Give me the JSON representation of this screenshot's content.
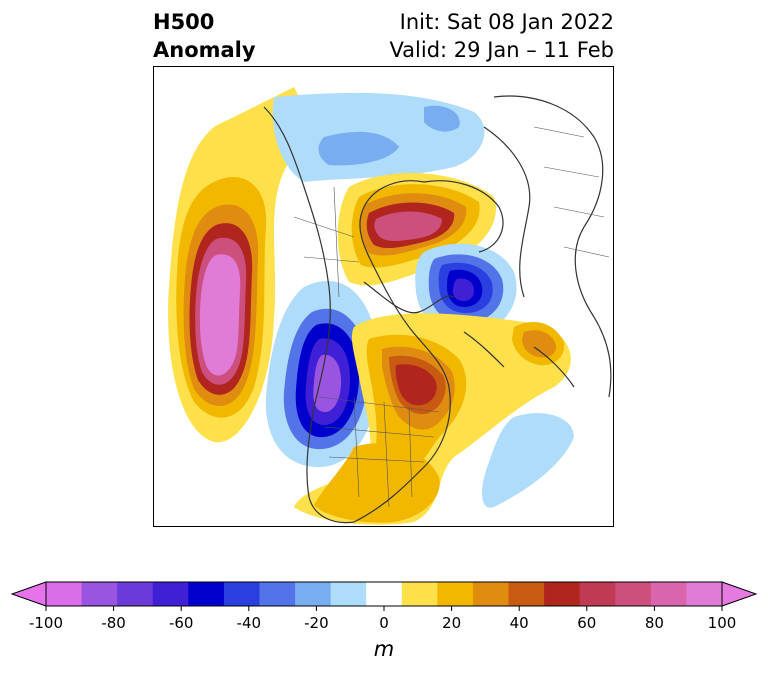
{
  "header": {
    "title_line1": "H500",
    "title_line2": "Anomaly",
    "init": "Init: Sat 08 Jan 2022",
    "valid": "Valid: 29 Jan – 11 Feb"
  },
  "map": {
    "projection": "polar-stereographic",
    "region": "North America / Arctic / North Atlantic"
  },
  "colorbar": {
    "unit": "m",
    "tick_labels": [
      "-100",
      "-80",
      "-60",
      "-40",
      "-20",
      "0",
      "20",
      "40",
      "60",
      "80",
      "100"
    ],
    "levels": [
      -100,
      -90,
      -80,
      -70,
      -60,
      -50,
      -40,
      -30,
      -20,
      -10,
      10,
      20,
      30,
      40,
      50,
      60,
      70,
      80,
      90,
      100
    ],
    "colors": [
      "#d96ee8",
      "#9a55e0",
      "#6b3bd9",
      "#4020d6",
      "#0000cc",
      "#2a3fe0",
      "#5274e8",
      "#78adf0",
      "#aedcfa",
      "#ffffff",
      "#fde04a",
      "#f2b800",
      "#e08c10",
      "#c85a12",
      "#b0261e",
      "#c03a55",
      "#cc4f7d",
      "#d966ad",
      "#e07bd6"
    ],
    "under_color": "#e673ea",
    "over_color": "#e67ae0"
  }
}
